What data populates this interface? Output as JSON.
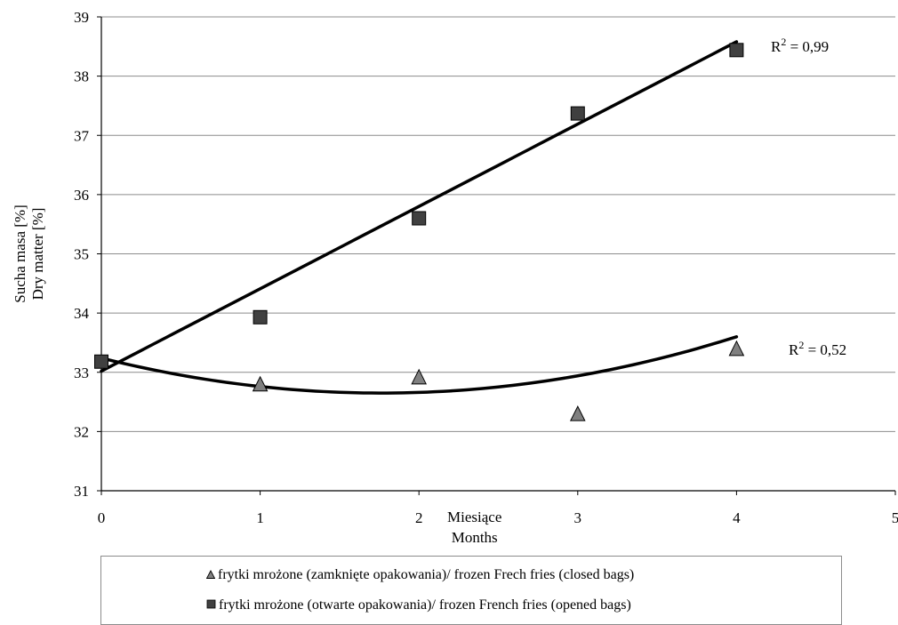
{
  "chart_data": {
    "type": "scatter",
    "title": "",
    "xlabel_line1": "Miesiące",
    "xlabel_line2": "Months",
    "ylabel_line1": "Sucha masa [%]",
    "ylabel_line2": "Dry matter [%]",
    "xlim": [
      0,
      5
    ],
    "ylim": [
      31,
      39
    ],
    "x_ticks": [
      "0",
      "1",
      "2",
      "3",
      "4",
      "5"
    ],
    "y_ticks": [
      "31",
      "32",
      "33",
      "34",
      "35",
      "36",
      "37",
      "38",
      "39"
    ],
    "grid": "horizontal",
    "legend_position": "bottom",
    "series": [
      {
        "name": "frytki mrożone (zamknięte opakowania)/ frozen Frech fries (closed bags)",
        "marker": "triangle",
        "color": "#808080",
        "x": [
          1,
          2,
          3,
          4
        ],
        "y": [
          32.78,
          32.9,
          32.28,
          33.38
        ],
        "trendline": {
          "type": "polynomial-2",
          "r2_label": "R² = 0,52",
          "coefficients": [
            33.24,
            -0.67,
            0.19
          ]
        }
      },
      {
        "name": "frytki mrożone (otwarte opakowania)/ frozen French fries (opened bags)",
        "marker": "square",
        "color": "#404040",
        "x": [
          0,
          1,
          2,
          3,
          4
        ],
        "y": [
          33.18,
          33.93,
          35.6,
          37.37,
          38.44
        ],
        "trendline": {
          "type": "linear",
          "r2_label": "R² = 0,99",
          "coefficients": [
            33.02,
            1.39
          ]
        }
      }
    ]
  }
}
